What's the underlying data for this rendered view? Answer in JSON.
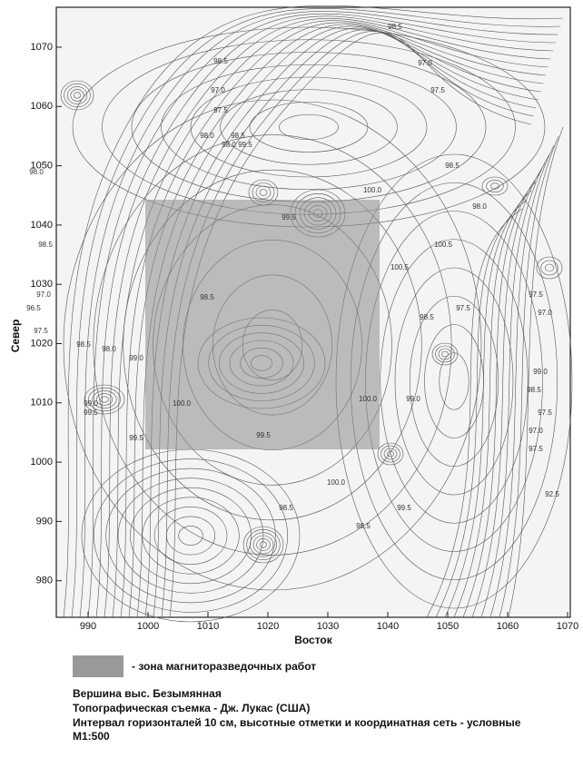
{
  "map": {
    "y_axis_label": "Север",
    "x_axis_label": "Восток",
    "x_ticks": [
      990,
      1000,
      1010,
      1020,
      1030,
      1040,
      1050,
      1060,
      1070
    ],
    "y_ticks": [
      980,
      990,
      1000,
      1010,
      1020,
      1030,
      1040,
      1050,
      1060,
      1070
    ],
    "contour_labels": [
      "98.5",
      "97.0",
      "97.5",
      "98.5",
      "97.0",
      "97.5",
      "98.0",
      "98.5",
      "96.5",
      "98.0",
      "98.5",
      "97.0",
      "97.5",
      "98.0",
      "98.5",
      "99.0",
      "100.0",
      "99.5",
      "100.5",
      "100.5",
      "99.5",
      "98.5",
      "98.0",
      "98.5",
      "97.5",
      "99.0",
      "99.5",
      "100.0",
      "100.0",
      "99.5",
      "98.5",
      "99.5",
      "98.5",
      "100.0",
      "98.5",
      "98.0",
      "97.5",
      "97.0",
      "99.0",
      "98.5",
      "97.5",
      "97.0",
      "97.5",
      "92.5",
      "99.0",
      "99.5"
    ]
  },
  "legend": {
    "label": "- зона магниторазведочных работ"
  },
  "caption": {
    "lines": [
      "Вершина выс. Безымянная",
      "Топографическая съемка - Дж. Лукас (США)",
      "Интервал горизонталей 10 см, высотные отметки и координатная сеть - условные",
      "М1:500"
    ]
  }
}
